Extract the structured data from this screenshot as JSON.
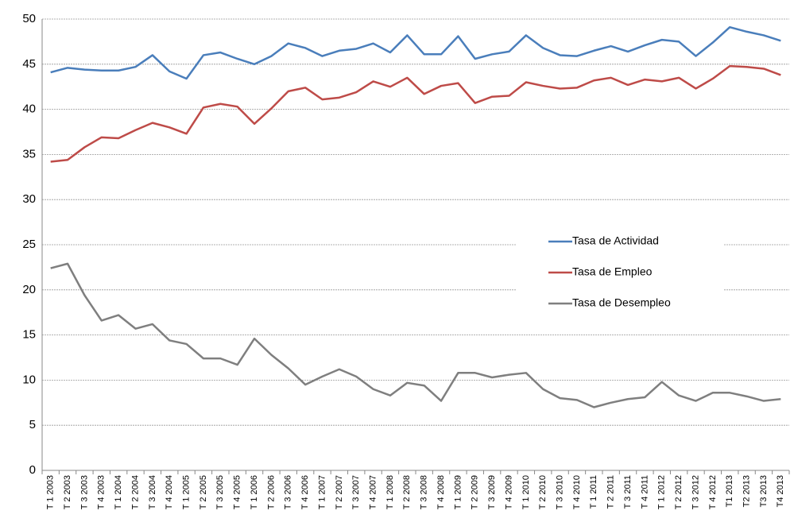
{
  "chart_data": {
    "type": "line",
    "categories": [
      "T 1 2003",
      "T 2 2003",
      "T 3 2003",
      "T 4 2003",
      "T 1 2004",
      "T 2 2004",
      "T 3 2004",
      "T 4 2004",
      "T 1 2005",
      "T 2 2005",
      "T 3 2005",
      "T 4 2005",
      "T 1 2006",
      "T 2 2006",
      "T 3 2006",
      "T 4 2006",
      "T 1 2007",
      "T 2 2007",
      "T 3 2007",
      "T 4 2007",
      "T 1 2008",
      "T 2 2008",
      "T 3 2008",
      "T 4 2008",
      "T 1 2009",
      "T 2 2009",
      "T 3 2009",
      "T 4 2009",
      "T 1 2010",
      "T 2 2010",
      "T 3 2010",
      "T 4 2010",
      "T 1 2011",
      "T 2 2011",
      "T 3 2011",
      "T 4 2011",
      "T 1 2012",
      "T 2 2012",
      "T 3 2012",
      "T 4 2012",
      "T1 2013",
      "T2 2013",
      "T3 2013",
      "T4 2013"
    ],
    "series": [
      {
        "name": "Tasa de Actividad",
        "color": "#4a7ebb",
        "values": [
          44.1,
          44.6,
          44.4,
          44.3,
          44.3,
          44.7,
          46.0,
          44.2,
          43.4,
          46.0,
          46.3,
          45.6,
          45.0,
          45.9,
          47.3,
          46.8,
          45.9,
          46.5,
          46.7,
          47.3,
          46.3,
          48.2,
          46.1,
          46.1,
          48.1,
          45.6,
          46.1,
          46.4,
          48.2,
          46.8,
          46.0,
          45.9,
          46.5,
          47.0,
          46.4,
          47.1,
          47.7,
          47.5,
          45.9,
          47.4,
          49.1,
          48.6,
          48.2,
          47.6
        ]
      },
      {
        "name": "Tasa de Empleo",
        "color": "#be4b48",
        "values": [
          34.2,
          34.4,
          35.8,
          36.9,
          36.8,
          37.7,
          38.5,
          38.0,
          37.3,
          40.2,
          40.6,
          40.3,
          38.4,
          40.1,
          42.0,
          42.4,
          41.1,
          41.3,
          41.9,
          43.1,
          42.5,
          43.5,
          41.7,
          42.6,
          42.9,
          40.7,
          41.4,
          41.5,
          43.0,
          42.6,
          42.3,
          42.4,
          43.2,
          43.5,
          42.7,
          43.3,
          43.1,
          43.5,
          42.3,
          43.4,
          44.8,
          44.7,
          44.5,
          43.8
        ]
      },
      {
        "name": "Tasa de Desempleo",
        "color": "#7f7f7f",
        "values": [
          22.4,
          22.9,
          19.4,
          16.6,
          17.2,
          15.7,
          16.2,
          14.4,
          14.0,
          12.4,
          12.4,
          11.7,
          14.6,
          12.8,
          11.3,
          9.5,
          10.4,
          11.2,
          10.4,
          9.0,
          8.3,
          9.7,
          9.4,
          7.7,
          10.8,
          10.8,
          10.3,
          10.6,
          10.8,
          9.0,
          8.0,
          7.8,
          7.0,
          7.5,
          7.9,
          8.1,
          9.8,
          8.3,
          7.7,
          8.6,
          8.6,
          8.2,
          7.7,
          7.9
        ]
      }
    ],
    "ylim": [
      0,
      50
    ],
    "yticks": [
      0,
      5,
      10,
      15,
      20,
      25,
      30,
      35,
      40,
      45,
      50
    ],
    "grid": true
  }
}
